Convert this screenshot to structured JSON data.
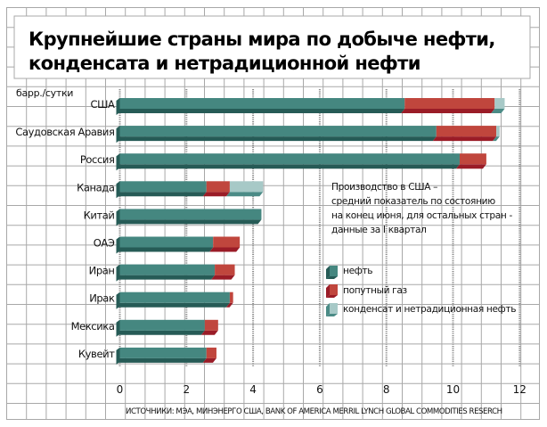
{
  "title": {
    "lines": [
      "Крупнейшие страны мира по добыче нефти,",
      "конденсата и нетрадиционной нефти"
    ]
  },
  "colors": {
    "grid": "#a8a8a8",
    "oil_top": "#458780",
    "oil_dark": "#265b56",
    "gas_top": "#c0463d",
    "gas_dark": "#9a1c27",
    "cond_top": "#a7c9c7",
    "cond_dark": "#4b8b86"
  },
  "note": {
    "lines": [
      "Производство в США –",
      "средний показатель по состоянию",
      "на конец июня, для остальных стран -",
      "данные за I квартал"
    ]
  },
  "source": "ИСТОЧНИКИ: МЭА, МИНЭНЕРГО США, BANK OF AMERICA MERRIL LYNCH GLOBAL COMMODITIES RESERCH",
  "chart_data": {
    "type": "bar",
    "orientation": "horizontal",
    "stacked": true,
    "title": "Крупнейшие страны мира по добыче нефти, конденсата и нетрадиционной нефти",
    "unit_label": "барр./сутки",
    "xlabel": "",
    "ylabel": "барр./сутки",
    "xlim": [
      0,
      12
    ],
    "xticks": [
      "0",
      "2",
      "4",
      "6",
      "8",
      "10",
      "12"
    ],
    "xtick_values": [
      0,
      2,
      4,
      6,
      8,
      10,
      12
    ],
    "grid": true,
    "legend_position": "right-middle",
    "categories": [
      "США",
      "Саудовская Аравия",
      "Россия",
      "Канада",
      "Китай",
      "ОАЭ",
      "Иран",
      "Ирак",
      "Мексика",
      "Кувейт"
    ],
    "series": [
      {
        "name": "нефть",
        "color_key": "oil",
        "values": [
          8.55,
          9.5,
          10.2,
          2.6,
          4.25,
          2.8,
          2.85,
          3.3,
          2.55,
          2.6
        ]
      },
      {
        "name": "попутный газ",
        "color_key": "gas",
        "values": [
          2.7,
          1.8,
          0.8,
          0.7,
          0.0,
          0.8,
          0.6,
          0.1,
          0.4,
          0.3
        ]
      },
      {
        "name": "конденсат и нетрадиционная нефть",
        "color_key": "cond",
        "values": [
          0.3,
          0.1,
          0.0,
          1.0,
          0.0,
          0.0,
          0.0,
          0.0,
          0.0,
          0.0
        ]
      }
    ]
  }
}
